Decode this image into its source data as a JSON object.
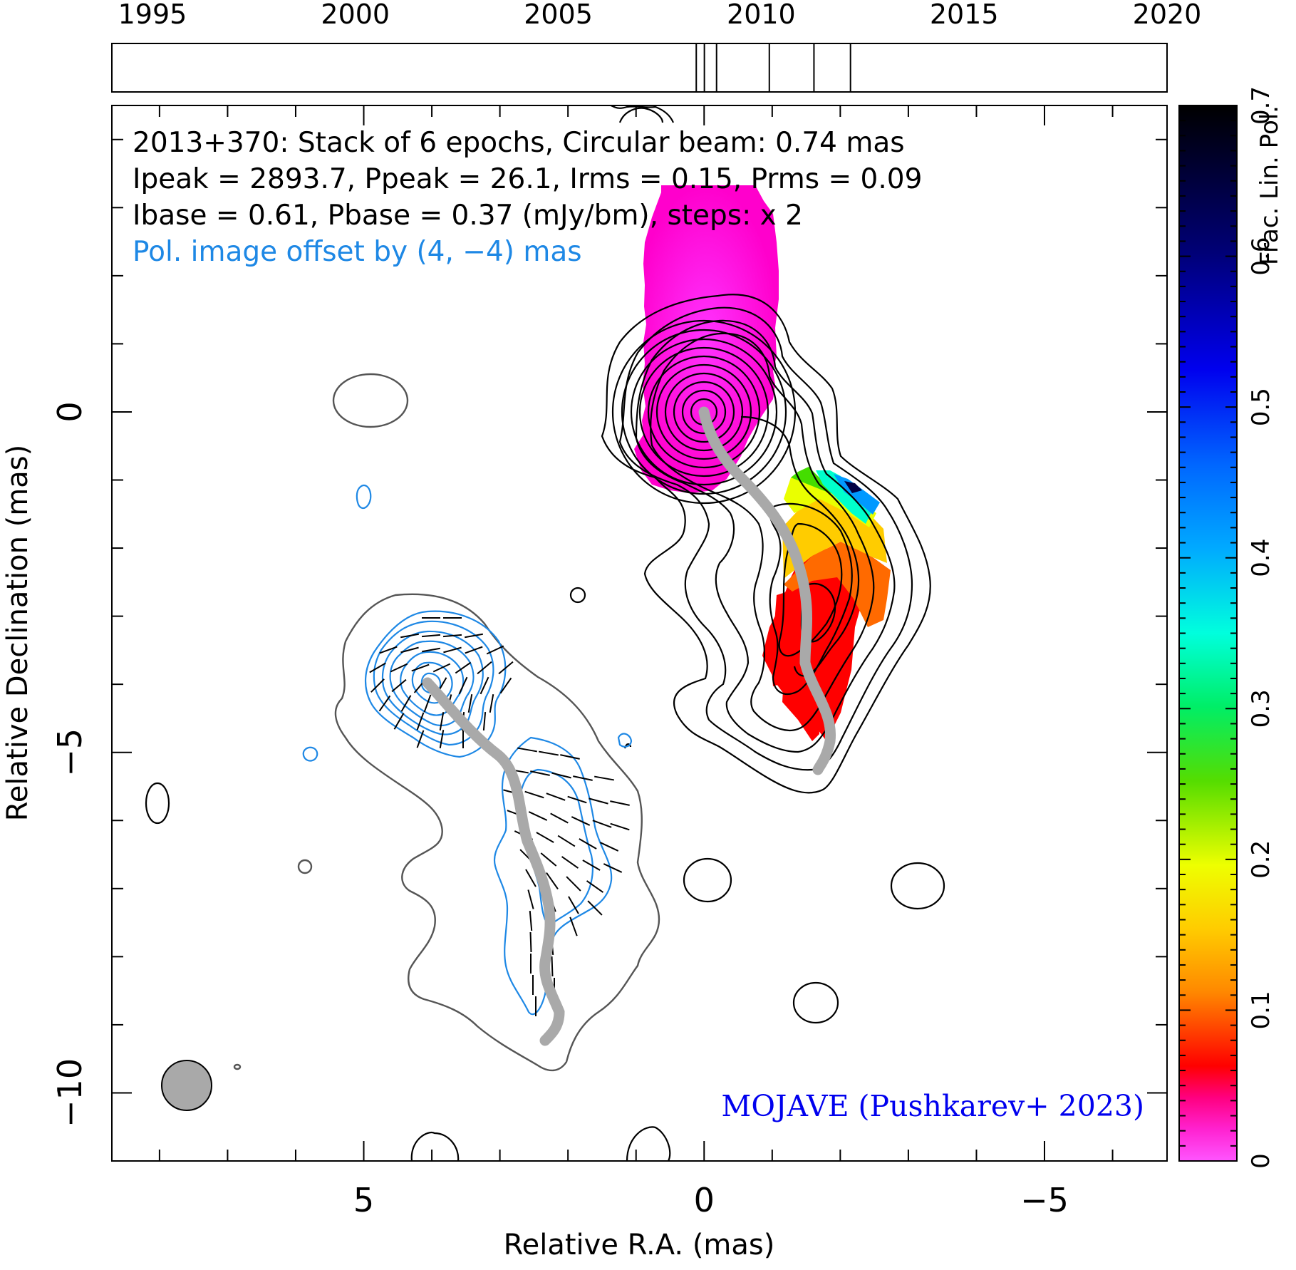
{
  "chart_data": {
    "type": "contour",
    "source": "2013+370",
    "info_lines": [
      "2013+370: Stack of 6 epochs, Circular beam: 0.74 mas",
      "Ipeak = 2893.7, Ppeak = 26.1, Irms = 0.15, Prms = 0.09",
      "Ibase = 0.61, Pbase = 0.37 (mJy/bm), steps: x 2"
    ],
    "offset_note": "Pol. image offset by (4, −4) mas",
    "credit": "MOJAVE (Pushkarev+ 2023)",
    "xlabel": "Relative R.A. (mas)",
    "ylabel": "Relative Declination (mas)",
    "xlim": [
      8.7,
      -6.8
    ],
    "ylim": [
      -11,
      4.5
    ],
    "x_ticks": [
      {
        "value": 5,
        "label": "5"
      },
      {
        "value": 0,
        "label": "0"
      },
      {
        "value": -5,
        "label": "−5"
      }
    ],
    "y_ticks": [
      {
        "value": 0,
        "label": "0"
      },
      {
        "value": -5,
        "label": "−5"
      },
      {
        "value": -10,
        "label": "−10"
      }
    ],
    "timeline": {
      "range": [
        1994.0,
        2020.0
      ],
      "ticks": [
        "1995",
        "2000",
        "2005",
        "2010",
        "2015",
        "2020"
      ],
      "epochs": [
        2008.4,
        2008.6,
        2008.9,
        2010.2,
        2011.3,
        2012.2
      ]
    },
    "colorbar": {
      "label": "Frac. Lin. Pol.",
      "range": [
        0,
        0.7
      ],
      "ticks": [
        "0",
        "0.1",
        "0.2",
        "0.3",
        "0.4",
        "0.5",
        "0.6",
        "0.7"
      ]
    },
    "beam_fwhm_mas": 0.74,
    "colors": {
      "stokes_i_contours": "#000000",
      "pol_contours": "#1e88e5",
      "offset_note": "#1e88e5",
      "credit": "#0000ee",
      "ridge_line": "#a9a9a9",
      "core_fractional_pol": "#ff22e0",
      "jet_fractional_pol_low": "#ff0000"
    }
  }
}
